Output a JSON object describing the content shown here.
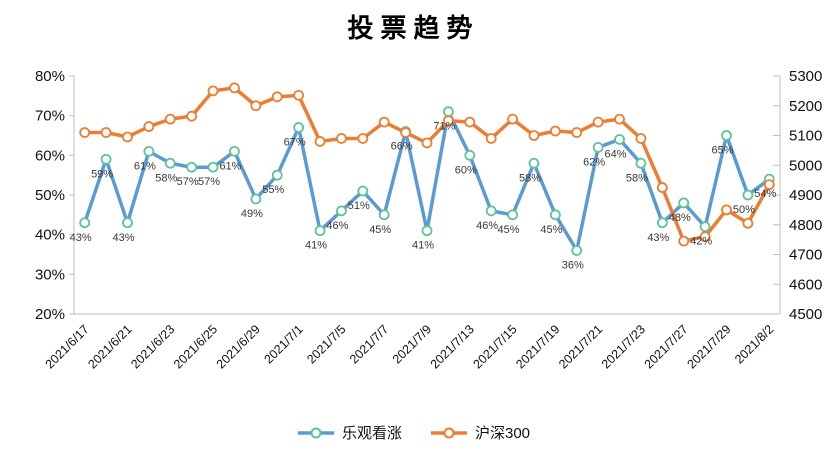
{
  "chart_data": {
    "type": "line",
    "title": "投票趋势",
    "x": [
      "2021/6/17",
      "",
      "2021/6/21",
      "",
      "2021/6/23",
      "",
      "2021/6/25",
      "",
      "2021/6/29",
      "",
      "2021/7/1",
      "",
      "2021/7/5",
      "",
      "2021/7/7",
      "",
      "2021/7/9",
      "",
      "2021/7/13",
      "",
      "2021/7/15",
      "",
      "2021/7/19",
      "",
      "2021/7/21",
      "",
      "2021/7/23",
      "",
      "2021/7/27",
      "",
      "2021/7/29",
      "",
      "2021/8/2"
    ],
    "series": [
      {
        "name": "乐观看涨",
        "axis": "left",
        "color": "#5B9BD5",
        "marker_stroke": "#5FC29A",
        "values": [
          43,
          59,
          43,
          61,
          58,
          57,
          57,
          61,
          49,
          55,
          67,
          41,
          46,
          51,
          45,
          66,
          41,
          71,
          60,
          46,
          45,
          58,
          45,
          36,
          62,
          64,
          58,
          43,
          48,
          42,
          65,
          50,
          54
        ],
        "labels": [
          "43%",
          "59%",
          "43%",
          "61%",
          "58%",
          "57%",
          "57%",
          "61%",
          "49%",
          "55%",
          "67%",
          "41%",
          "46%",
          "51%",
          "45%",
          "66%",
          "41%",
          "71%",
          "60%",
          "46%",
          "45%",
          "58%",
          "45%",
          "36%",
          "62%",
          "64%",
          "58%",
          "43%",
          "48%",
          "42%",
          "65%",
          "50%",
          "54%"
        ]
      },
      {
        "name": "沪深300",
        "axis": "right",
        "color": "#ED7D31",
        "marker_stroke": "#ED7D31",
        "values": [
          5110,
          5110,
          5095,
          5130,
          5155,
          5165,
          5250,
          5260,
          5200,
          5230,
          5235,
          5080,
          5090,
          5090,
          5145,
          5110,
          5075,
          5150,
          5145,
          5090,
          5155,
          5100,
          5115,
          5110,
          5145,
          5155,
          5090,
          4925,
          4745,
          4760,
          4850,
          4805,
          4935
        ],
        "labels": []
      }
    ],
    "left_axis": {
      "min": 20,
      "max": 80,
      "ticks": [
        "80%",
        "70%",
        "60%",
        "50%",
        "40%",
        "30%",
        "20%"
      ]
    },
    "right_axis": {
      "min": 4500,
      "max": 5300,
      "ticks": [
        "5300",
        "5200",
        "5100",
        "5000",
        "4900",
        "4800",
        "4700",
        "4600",
        "4500"
      ]
    },
    "grid": false,
    "legend_position": "bottom"
  }
}
